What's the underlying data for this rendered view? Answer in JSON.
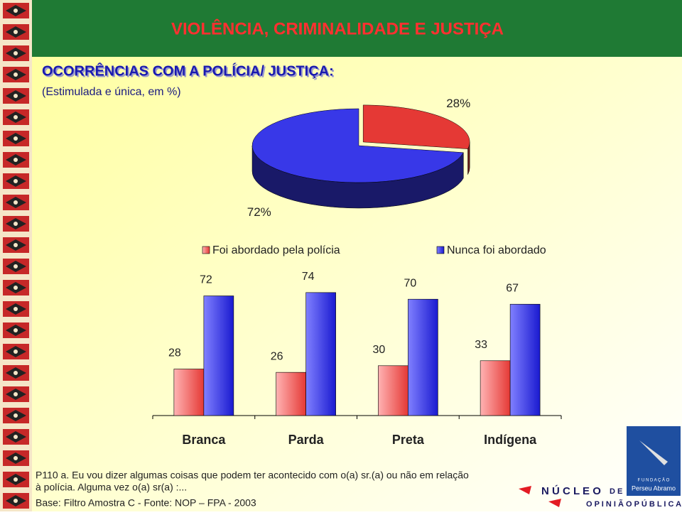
{
  "header": {
    "title": "VIOLÊNCIA, CRIMINALIDADE E JUSTIÇA",
    "subtitle": "OCORRÊNCIAS COM A POLÍCIA/ JUSTIÇA:",
    "note": "(Estimulada e única, em %)"
  },
  "chart_data": [
    {
      "type": "pie",
      "values": [
        28,
        72
      ],
      "value_labels": [
        "28%",
        "72%"
      ],
      "colors": [
        "#e53935",
        "#3838e8"
      ]
    },
    {
      "type": "bar",
      "categories": [
        "Branca",
        "Parda",
        "Preta",
        "Indígena"
      ],
      "series": [
        {
          "name": "Foi abordado pela polícia",
          "color": "#e53935",
          "values": [
            28,
            26,
            30,
            33
          ]
        },
        {
          "name": "Nunca foi abordado",
          "color": "#3030e0",
          "values": [
            72,
            74,
            70,
            67
          ]
        }
      ],
      "ylim": [
        0,
        100
      ],
      "legend": "top"
    }
  ],
  "footer": {
    "question": [
      "P110 a. Eu vou dizer algumas coisas que podem ter acontecido com o(a) sr.(a)  ou não em relação",
      "à polícia. Alguma vez o(a) sr(a) :..."
    ],
    "source": "Base: Filtro Amostra C  -  Fonte: NOP – FPA - 2003"
  },
  "logo": {
    "line1": "N Ú C L E O",
    "line1b": "D E",
    "line2": "O P I N I Ã O  P Ú B L I C A",
    "foundation": "F U N D A Ç Ã O",
    "name": "Perseu Abramo"
  }
}
